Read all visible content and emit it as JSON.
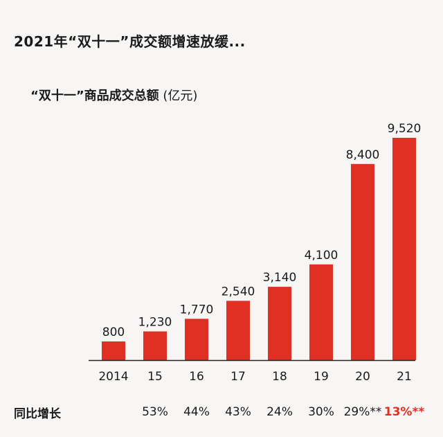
{
  "headline": "2021年“双十一”成交额增速放缓...",
  "subtitle": {
    "main": "“双十一”商品成交总额",
    "unit": "(亿元)"
  },
  "colors": {
    "bar": "#e02f23",
    "text": "#1a1a1a",
    "highlight": "#e02f23",
    "axis": "#222222"
  },
  "yoy": {
    "label": "同比增长",
    "values": [
      "",
      "53%",
      "44%",
      "43%",
      "24%",
      "30%",
      "29%**",
      "13%**"
    ],
    "highlight_index": 7
  },
  "chart_data": {
    "type": "bar",
    "categories": [
      "2014",
      "15",
      "16",
      "17",
      "18",
      "19",
      "20",
      "21"
    ],
    "values": [
      800,
      1230,
      1770,
      2540,
      3140,
      4100,
      8400,
      9520
    ],
    "data_labels": [
      "800",
      "1,230",
      "1,770",
      "2,540",
      "3,140",
      "4,100",
      "8,400",
      "9,520"
    ],
    "title": "“双十一”商品成交总额",
    "ylabel": "(亿元)",
    "ylim": [
      0,
      9520
    ],
    "grid": false,
    "legend": "none"
  }
}
